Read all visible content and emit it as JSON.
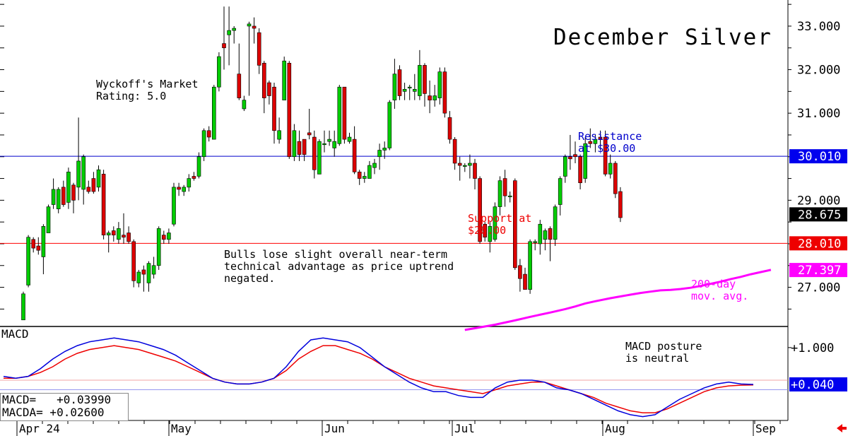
{
  "chart_data": [
    {
      "type": "candlestick",
      "title": "December Silver",
      "ylim": [
        26.1,
        33.6
      ],
      "yticks": [
        "33.000",
        "32.000",
        "31.000",
        "29.000",
        "27.000"
      ],
      "xticks": [
        "Apr 24",
        "May",
        "Jun",
        "Jul",
        "Aug",
        "Sep"
      ],
      "grid": false,
      "candles": [
        [
          26.25,
          26.85,
          26.25,
          26.9
        ],
        [
          27.05,
          28.15,
          27.0,
          28.2
        ],
        [
          28.1,
          27.9,
          27.8,
          28.15
        ],
        [
          27.95,
          27.85,
          27.75,
          28.15
        ],
        [
          27.7,
          28.4,
          27.3,
          28.45
        ],
        [
          28.25,
          28.85,
          28.25,
          28.9
        ],
        [
          28.9,
          29.25,
          28.8,
          29.5
        ],
        [
          28.8,
          29.25,
          28.7,
          29.3
        ],
        [
          29.3,
          28.9,
          28.85,
          29.45
        ],
        [
          28.95,
          29.65,
          28.8,
          29.75
        ],
        [
          29.35,
          29.0,
          28.7,
          29.4
        ],
        [
          29.3,
          29.9,
          29.0,
          30.9
        ],
        [
          29.25,
          30.0,
          28.9,
          30.05
        ],
        [
          29.3,
          29.2,
          29.15,
          29.45
        ],
        [
          29.5,
          29.2,
          29.15,
          29.65
        ],
        [
          29.3,
          29.7,
          29.2,
          29.8
        ],
        [
          29.6,
          28.2,
          28.1,
          29.7
        ],
        [
          28.2,
          28.25,
          27.8,
          28.3
        ],
        [
          28.3,
          28.2,
          28.05,
          28.4
        ],
        [
          28.1,
          28.35,
          28.0,
          28.5
        ],
        [
          28.2,
          28.15,
          28.0,
          28.7
        ],
        [
          28.25,
          28.05,
          28.0,
          28.4
        ],
        [
          28.05,
          27.15,
          27.0,
          28.1
        ],
        [
          27.1,
          27.35,
          27.0,
          27.4
        ],
        [
          27.4,
          27.3,
          26.9,
          27.5
        ],
        [
          27.1,
          27.55,
          26.9,
          27.6
        ],
        [
          27.3,
          27.5,
          27.2,
          27.7
        ],
        [
          27.5,
          28.35,
          27.4,
          28.4
        ],
        [
          28.2,
          28.1,
          28.0,
          28.3
        ],
        [
          28.1,
          28.25,
          28.0,
          28.35
        ],
        [
          28.45,
          29.3,
          28.4,
          29.4
        ],
        [
          29.3,
          29.25,
          29.1,
          29.4
        ],
        [
          29.2,
          29.3,
          29.1,
          29.35
        ],
        [
          29.3,
          29.5,
          29.2,
          29.6
        ],
        [
          29.55,
          29.5,
          29.45,
          29.65
        ],
        [
          29.55,
          30.0,
          29.5,
          30.1
        ],
        [
          30.0,
          30.6,
          29.9,
          30.65
        ],
        [
          30.6,
          30.45,
          30.35,
          30.7
        ],
        [
          30.4,
          31.6,
          30.4,
          31.65
        ],
        [
          31.6,
          32.3,
          31.5,
          32.4
        ],
        [
          32.6,
          32.5,
          32.0,
          33.45
        ],
        [
          32.8,
          32.9,
          32.1,
          33.45
        ],
        [
          32.9,
          32.95,
          32.6,
          33.0
        ],
        [
          31.9,
          31.35,
          31.3,
          32.6
        ],
        [
          31.1,
          31.3,
          31.05,
          31.4
        ],
        [
          33.0,
          33.05,
          31.4,
          33.1
        ],
        [
          33.0,
          32.95,
          32.6,
          33.2
        ],
        [
          32.85,
          32.1,
          31.9,
          32.95
        ],
        [
          32.15,
          31.35,
          31.0,
          32.2
        ],
        [
          31.7,
          31.4,
          31.2,
          31.75
        ],
        [
          31.6,
          30.6,
          30.3,
          31.7
        ],
        [
          30.4,
          30.6,
          30.3,
          30.9
        ],
        [
          31.3,
          32.2,
          31.3,
          32.3
        ],
        [
          32.15,
          30.0,
          29.95,
          32.2
        ],
        [
          30.0,
          30.6,
          29.9,
          30.75
        ],
        [
          30.35,
          30.05,
          29.9,
          30.6
        ],
        [
          30.4,
          30.05,
          29.9,
          30.4
        ],
        [
          30.55,
          30.5,
          30.4,
          31.1
        ],
        [
          30.45,
          29.7,
          29.5,
          30.6
        ],
        [
          29.6,
          30.35,
          29.6,
          30.4
        ],
        [
          30.3,
          30.3,
          30.1,
          30.6
        ],
        [
          30.35,
          30.4,
          30.25,
          30.6
        ],
        [
          30.2,
          30.35,
          30.0,
          30.6
        ],
        [
          30.3,
          31.6,
          30.25,
          31.65
        ],
        [
          31.6,
          30.4,
          30.3,
          31.6
        ],
        [
          30.35,
          30.45,
          30.3,
          30.55
        ],
        [
          30.4,
          29.65,
          29.6,
          30.7
        ],
        [
          29.65,
          29.5,
          29.35,
          29.7
        ],
        [
          29.5,
          29.55,
          29.4,
          29.65
        ],
        [
          29.5,
          29.8,
          29.5,
          29.9
        ],
        [
          29.75,
          29.85,
          29.6,
          29.95
        ],
        [
          30.0,
          30.15,
          29.7,
          30.3
        ],
        [
          30.15,
          30.2,
          29.95,
          30.35
        ],
        [
          30.2,
          31.25,
          30.15,
          31.3
        ],
        [
          31.3,
          31.9,
          31.1,
          32.25
        ],
        [
          32.0,
          31.4,
          31.3,
          32.1
        ],
        [
          31.5,
          31.55,
          31.3,
          31.7
        ],
        [
          31.6,
          31.6,
          31.3,
          31.65
        ],
        [
          31.5,
          31.55,
          31.3,
          31.9
        ],
        [
          31.4,
          32.1,
          31.3,
          32.45
        ],
        [
          32.1,
          31.45,
          31.15,
          32.15
        ],
        [
          31.4,
          31.3,
          31.0,
          31.75
        ],
        [
          31.3,
          31.4,
          31.15,
          31.65
        ],
        [
          31.35,
          31.95,
          31.2,
          32.05
        ],
        [
          31.95,
          31.0,
          30.9,
          32.05
        ],
        [
          30.9,
          30.4,
          30.3,
          31.05
        ],
        [
          30.4,
          29.85,
          29.7,
          30.45
        ],
        [
          29.85,
          29.8,
          29.45,
          30.0
        ],
        [
          29.8,
          29.8,
          29.65,
          29.85
        ],
        [
          29.8,
          29.85,
          29.5,
          30.05
        ],
        [
          29.85,
          29.5,
          29.25,
          29.95
        ],
        [
          29.5,
          28.05,
          28.0,
          29.55
        ],
        [
          28.45,
          28.15,
          28.05,
          28.5
        ],
        [
          28.05,
          28.4,
          27.8,
          28.5
        ],
        [
          28.1,
          28.85,
          28.05,
          28.95
        ],
        [
          28.85,
          29.45,
          28.65,
          29.55
        ],
        [
          29.5,
          29.1,
          28.85,
          29.7
        ],
        [
          29.1,
          29.1,
          28.95,
          29.2
        ],
        [
          29.45,
          27.45,
          27.4,
          29.5
        ],
        [
          27.5,
          27.2,
          26.9,
          27.65
        ],
        [
          27.3,
          26.95,
          26.95,
          27.45
        ],
        [
          26.95,
          28.05,
          26.85,
          28.1
        ],
        [
          28.05,
          28.05,
          27.85,
          28.1
        ],
        [
          28.0,
          28.45,
          27.75,
          28.55
        ],
        [
          28.1,
          28.3,
          27.85,
          28.35
        ],
        [
          28.35,
          28.1,
          27.6,
          28.4
        ],
        [
          28.1,
          28.85,
          27.95,
          28.9
        ],
        [
          28.9,
          29.5,
          28.65,
          29.55
        ],
        [
          29.55,
          30.0,
          29.4,
          30.05
        ],
        [
          30.0,
          29.95,
          29.7,
          30.5
        ],
        [
          30.05,
          30.0,
          29.85,
          30.35
        ],
        [
          30.0,
          29.4,
          29.25,
          30.05
        ],
        [
          29.5,
          30.3,
          29.4,
          30.45
        ],
        [
          30.35,
          30.3,
          30.2,
          30.65
        ],
        [
          30.3,
          30.4,
          30.1,
          30.5
        ],
        [
          30.45,
          30.4,
          30.15,
          30.6
        ],
        [
          30.45,
          29.6,
          29.55,
          30.6
        ],
        [
          29.6,
          29.85,
          29.5,
          30.05
        ],
        [
          29.85,
          29.15,
          29.05,
          29.9
        ],
        [
          29.2,
          28.6,
          28.5,
          29.3
        ]
      ],
      "ma200": [
        [
          88.0,
          26.02
        ],
        [
          90.0,
          26.06
        ],
        [
          94.0,
          26.14
        ],
        [
          98.0,
          26.24
        ],
        [
          101.0,
          26.32
        ],
        [
          105.0,
          26.42
        ],
        [
          108.0,
          26.5
        ],
        [
          110.0,
          26.56
        ],
        [
          112.0,
          26.63
        ],
        [
          114.0,
          26.68
        ],
        [
          117.0,
          26.75
        ],
        [
          119.0,
          26.79
        ],
        [
          121.0,
          26.83
        ],
        [
          123.0,
          26.87
        ],
        [
          125.0,
          26.9
        ],
        [
          127.0,
          26.93
        ],
        [
          129.0,
          26.94
        ],
        [
          131.0,
          26.96
        ],
        [
          133.0,
          26.99
        ],
        [
          135.0,
          27.03
        ],
        [
          137.0,
          27.08
        ],
        [
          139.0,
          27.13
        ],
        [
          141.0,
          27.19
        ],
        [
          143.0,
          27.24
        ],
        [
          145.0,
          27.3
        ],
        [
          147.0,
          27.35
        ],
        [
          149.0,
          27.4
        ]
      ],
      "hlines": [
        {
          "value": 30.01,
          "color": "#0000cc"
        },
        {
          "value": 28.01,
          "color": "#ff0000"
        }
      ],
      "price_tags": [
        {
          "label": "30.010",
          "value": 30.01,
          "bg": "#0000ee",
          "fg": "#ffffff"
        },
        {
          "label": "28.675",
          "value": 28.675,
          "bg": "#000000",
          "fg": "#ffffff"
        },
        {
          "label": "28.010",
          "value": 28.01,
          "bg": "#ee0000",
          "fg": "#ffffff"
        },
        {
          "label": "27.397",
          "value": 27.397,
          "bg": "#ff00ff",
          "fg": "#ffffff"
        }
      ],
      "annotations": {
        "rating": [
          "Wyckoff's Market",
          "Rating: 5.0"
        ],
        "bulls": [
          "Bulls lose slight overall near-term",
          "technical advantage as price uptrend",
          "negated."
        ],
        "resistance": [
          "Resistance",
          "at $30.00"
        ],
        "support": [
          "Support at",
          "$28.00"
        ],
        "ma_label": [
          "200-day",
          "mov. avg."
        ]
      },
      "colors": {
        "up": "#00cc00",
        "down": "#dd0000",
        "ma": "#ff00ff"
      }
    },
    {
      "type": "line",
      "title": "MACD",
      "ylim": [
        -0.9,
        1.55
      ],
      "yticks": [
        "+1.000"
      ],
      "series": [
        {
          "name": "MACD",
          "color": "#0000dd",
          "values": [
            0.25,
            0.2,
            0.25,
            0.45,
            0.7,
            0.9,
            1.05,
            1.15,
            1.2,
            1.25,
            1.2,
            1.15,
            1.05,
            0.95,
            0.8,
            0.6,
            0.4,
            0.2,
            0.1,
            0.05,
            0.05,
            0.1,
            0.2,
            0.5,
            0.9,
            1.2,
            1.25,
            1.2,
            1.15,
            1.0,
            0.75,
            0.5,
            0.3,
            0.1,
            -0.05,
            -0.15,
            -0.15,
            -0.25,
            -0.3,
            -0.3,
            -0.05,
            0.1,
            0.15,
            0.15,
            0.1,
            -0.05,
            -0.1,
            -0.2,
            -0.35,
            -0.5,
            -0.65,
            -0.75,
            -0.8,
            -0.75,
            -0.55,
            -0.35,
            -0.2,
            -0.05,
            0.05,
            0.1,
            0.05,
            0.04
          ]
        },
        {
          "name": "MACDA",
          "color": "#ee0000",
          "values": [
            0.2,
            0.2,
            0.25,
            0.35,
            0.5,
            0.7,
            0.85,
            0.95,
            1.0,
            1.05,
            1.0,
            0.95,
            0.85,
            0.75,
            0.65,
            0.5,
            0.35,
            0.2,
            0.1,
            0.05,
            0.05,
            0.1,
            0.2,
            0.4,
            0.7,
            0.9,
            1.05,
            1.05,
            0.95,
            0.85,
            0.7,
            0.5,
            0.35,
            0.2,
            0.1,
            0.0,
            -0.05,
            -0.1,
            -0.15,
            -0.2,
            -0.1,
            0.0,
            0.05,
            0.1,
            0.1,
            0.0,
            -0.1,
            -0.2,
            -0.3,
            -0.45,
            -0.55,
            -0.65,
            -0.7,
            -0.7,
            -0.6,
            -0.45,
            -0.3,
            -0.15,
            -0.05,
            0.0,
            0.02,
            0.026
          ]
        }
      ],
      "value_tag": {
        "label": "+0.040",
        "value": 0.04,
        "bg": "#0000ee",
        "fg": "#ffffff"
      },
      "annotation": [
        "MACD posture",
        "is neutral"
      ]
    }
  ],
  "readout": {
    "macd": "MACD=   +0.03990",
    "macda": "MACDA= +0.02600"
  }
}
